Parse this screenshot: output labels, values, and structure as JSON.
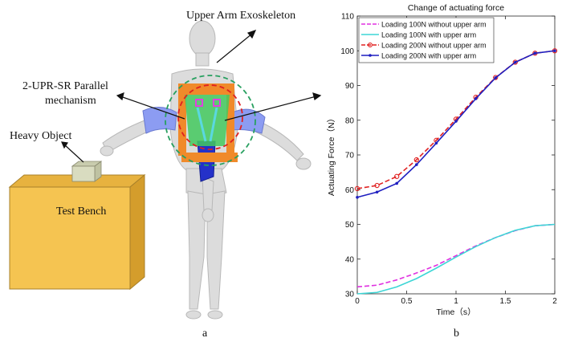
{
  "figure_a": {
    "labels": {
      "upper_arm_exoskeleton": "Upper Arm Exoskeleton",
      "mechanism_line1": "2-UPR-SR Parallel",
      "mechanism_line2": "mechanism",
      "heavy_object": "Heavy Object",
      "test_bench": "Test Bench"
    },
    "panel_label": "a",
    "colors": {
      "bench": "#f5c451",
      "object": "#d9dcc0",
      "arm": "#8c9cf2",
      "body": "#dcdcdc",
      "frame": "#f08a2a",
      "sleeve": "#2431c9",
      "mechanism": "#43c95e"
    }
  },
  "figure_b": {
    "panel_label": "b"
  },
  "chart_data": {
    "type": "line",
    "title": "Change of actuating force",
    "xlabel": "Time（s）",
    "ylabel": "Actuating Force（N）",
    "xlim": [
      0,
      2
    ],
    "ylim": [
      30,
      110
    ],
    "xticks": [
      0,
      0.5,
      1,
      1.5,
      2
    ],
    "xtick_labels": [
      "0",
      "0.5",
      "1",
      "1.5",
      "2"
    ],
    "yticks": [
      30,
      40,
      50,
      60,
      70,
      80,
      90,
      100,
      110
    ],
    "ytick_labels": [
      "30",
      "40",
      "50",
      "60",
      "70",
      "80",
      "90",
      "100",
      "110"
    ],
    "grid": false,
    "legend_position": "top-left",
    "x": [
      0,
      0.2,
      0.4,
      0.6,
      0.8,
      1.0,
      1.2,
      1.4,
      1.6,
      1.8,
      2.0
    ],
    "series": [
      {
        "name": "Loading 100N without upper arm",
        "color": "#e030e0",
        "dash": true,
        "marker": "none",
        "values": [
          32,
          32.5,
          34,
          36,
          38.2,
          41,
          43.8,
          46.2,
          48.2,
          49.6,
          50
        ]
      },
      {
        "name": "Loading 100N with upper arm",
        "color": "#3dd6d6",
        "dash": false,
        "marker": "none",
        "values": [
          30,
          30.4,
          32,
          34.4,
          37.4,
          40.6,
          43.6,
          46.2,
          48.3,
          49.6,
          50
        ]
      },
      {
        "name": "Loading 200N without upper arm",
        "color": "#e02020",
        "dash": true,
        "marker": "circle",
        "values": [
          60.3,
          61.2,
          63.8,
          68.6,
          74.2,
          80.3,
          86.6,
          92.3,
          96.7,
          99.3,
          100
        ]
      },
      {
        "name": "Loading 200N with upper arm",
        "color": "#1f1fc0",
        "dash": false,
        "marker": "dot",
        "values": [
          57.8,
          59.3,
          61.8,
          67.2,
          73.4,
          79.7,
          86.2,
          92.2,
          96.7,
          99.3,
          100
        ]
      }
    ]
  }
}
